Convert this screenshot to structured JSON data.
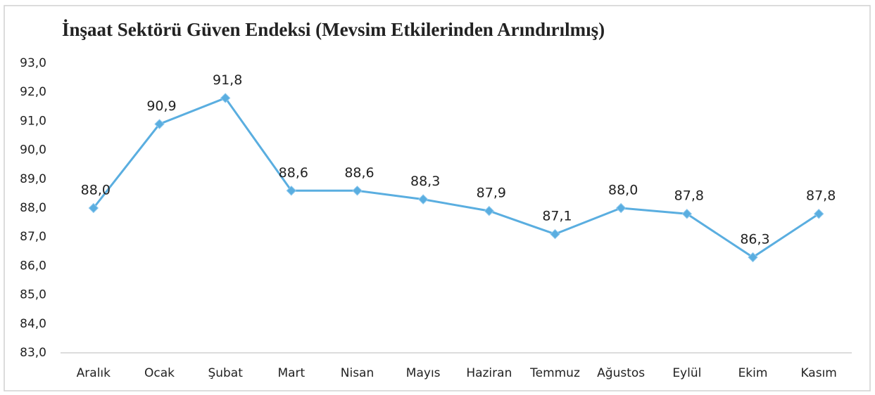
{
  "chart_data": {
    "type": "line",
    "title": "İnşaat Sektörü Güven Endeksi (Mevsim Etkilerinden Arındırılmış)",
    "categories": [
      "Aralık",
      "Ocak",
      "Şubat",
      "Mart",
      "Nisan",
      "Mayıs",
      "Haziran",
      "Temmuz",
      "Ağustos",
      "Eylül",
      "Ekim",
      "Kasım"
    ],
    "series": [
      {
        "name": "İnşaat Sektörü Güven Endeksi",
        "color": "#5aaee0",
        "values": [
          88.0,
          90.9,
          91.8,
          88.6,
          88.6,
          88.3,
          87.9,
          87.1,
          88.0,
          87.8,
          86.3,
          87.8
        ],
        "value_labels": [
          "88,0",
          "90,9",
          "91,8",
          "88,6",
          "88,6",
          "88,3",
          "87,9",
          "87,1",
          "88,0",
          "87,8",
          "86,3",
          "87,8"
        ]
      }
    ],
    "ylim": [
      83,
      93
    ],
    "yticks": [
      {
        "value": 83,
        "label": "83,0"
      },
      {
        "value": 84,
        "label": "84,0"
      },
      {
        "value": 85,
        "label": "85,0"
      },
      {
        "value": 86,
        "label": "86,0"
      },
      {
        "value": 87,
        "label": "87,0"
      },
      {
        "value": 88,
        "label": "88,0"
      },
      {
        "value": 89,
        "label": "89,0"
      },
      {
        "value": 90,
        "label": "90,0"
      },
      {
        "value": 91,
        "label": "91,0"
      },
      {
        "value": 92,
        "label": "92,0"
      },
      {
        "value": 93,
        "label": "93,0"
      }
    ],
    "grid": false
  }
}
